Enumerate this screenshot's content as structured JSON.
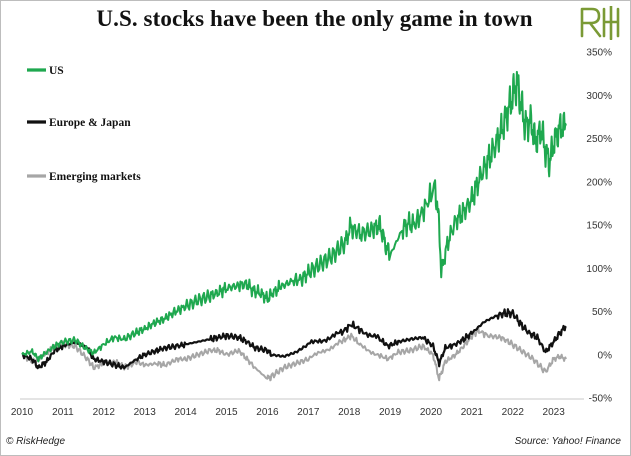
{
  "title": "U.S. stocks have been the only game in town",
  "logo_text": "RH",
  "footer": {
    "left": "© RiskHedge",
    "right": "Source: Yahoo! Finance"
  },
  "colors": {
    "us": "#1fa84f",
    "europe_japan": "#111111",
    "emerging": "#a6a6a6",
    "logo": "#7a9a35"
  },
  "chart_data": {
    "type": "line",
    "title": "U.S. stocks have been the only game in town",
    "xlabel": "",
    "ylabel": "",
    "xlim": [
      2010,
      2023.35
    ],
    "ylim": [
      -50,
      350
    ],
    "x_ticks": [
      "2010",
      "2011",
      "2012",
      "2013",
      "2014",
      "2015",
      "2016",
      "2017",
      "2018",
      "2019",
      "2020",
      "2021",
      "2022",
      "2023"
    ],
    "y_ticks": [
      "-50%",
      "0%",
      "50%",
      "100%",
      "150%",
      "200%",
      "250%",
      "300%",
      "350%"
    ],
    "y_axis_position": "right",
    "legend_position": "left",
    "grid": false,
    "series": [
      {
        "name": "US",
        "color": "#1fa84f",
        "x": [
          2010.0,
          2010.25,
          2010.4,
          2010.6,
          2010.8,
          2011.0,
          2011.3,
          2011.6,
          2011.75,
          2012.0,
          2012.25,
          2012.5,
          2012.8,
          2013.0,
          2013.25,
          2013.5,
          2013.75,
          2014.0,
          2014.3,
          2014.6,
          2014.8,
          2015.0,
          2015.3,
          2015.5,
          2015.65,
          2015.8,
          2016.0,
          2016.1,
          2016.3,
          2016.6,
          2016.85,
          2017.0,
          2017.3,
          2017.6,
          2017.9,
          2018.05,
          2018.1,
          2018.3,
          2018.6,
          2018.75,
          2018.9,
          2019.0,
          2019.3,
          2019.45,
          2019.6,
          2019.85,
          2020.1,
          2020.2,
          2020.25,
          2020.4,
          2020.6,
          2020.8,
          2021.0,
          2021.2,
          2021.4,
          2021.6,
          2021.75,
          2021.9,
          2022.0,
          2022.1,
          2022.2,
          2022.3,
          2022.45,
          2022.55,
          2022.7,
          2022.8,
          2022.9,
          2023.0,
          2023.15,
          2023.3
        ],
        "y": [
          0,
          4,
          -5,
          3,
          10,
          15,
          17,
          6,
          2,
          12,
          20,
          18,
          26,
          30,
          37,
          42,
          50,
          56,
          63,
          68,
          72,
          77,
          80,
          82,
          74,
          72,
          65,
          70,
          78,
          85,
          88,
          95,
          105,
          115,
          130,
          150,
          145,
          140,
          145,
          150,
          125,
          115,
          145,
          152,
          150,
          170,
          195,
          150,
          95,
          128,
          155,
          165,
          180,
          205,
          225,
          245,
          262,
          285,
          300,
          315,
          290,
          265,
          270,
          245,
          260,
          235,
          222,
          245,
          262,
          265
        ]
      },
      {
        "name": "Europe & Japan",
        "color": "#111111",
        "x": [
          2010.0,
          2010.25,
          2010.4,
          2010.6,
          2010.8,
          2011.0,
          2011.3,
          2011.6,
          2011.75,
          2012.0,
          2012.3,
          2012.5,
          2012.8,
          2013.0,
          2013.3,
          2013.5,
          2013.8,
          2014.0,
          2014.3,
          2014.6,
          2014.8,
          2015.0,
          2015.3,
          2015.5,
          2015.7,
          2016.0,
          2016.1,
          2016.4,
          2016.7,
          2017.0,
          2017.4,
          2017.8,
          2018.05,
          2018.3,
          2018.7,
          2018.95,
          2019.2,
          2019.5,
          2019.8,
          2020.05,
          2020.2,
          2020.35,
          2020.6,
          2020.8,
          2021.0,
          2021.3,
          2021.6,
          2021.8,
          2022.0,
          2022.2,
          2022.4,
          2022.6,
          2022.8,
          2023.0,
          2023.15,
          2023.3
        ],
        "y": [
          0,
          -5,
          -15,
          -8,
          5,
          10,
          15,
          8,
          -5,
          -8,
          -12,
          -15,
          -5,
          0,
          5,
          8,
          10,
          12,
          15,
          18,
          20,
          22,
          20,
          15,
          8,
          5,
          0,
          -2,
          3,
          12,
          18,
          25,
          35,
          28,
          20,
          10,
          15,
          18,
          20,
          10,
          -10,
          8,
          12,
          18,
          25,
          38,
          45,
          48,
          48,
          35,
          25,
          20,
          3,
          15,
          25,
          33
        ]
      },
      {
        "name": "Emerging markets",
        "color": "#a6a6a6",
        "x": [
          2010.0,
          2010.25,
          2010.4,
          2010.6,
          2010.8,
          2011.0,
          2011.3,
          2011.6,
          2011.75,
          2012.0,
          2012.3,
          2012.5,
          2012.8,
          2013.0,
          2013.3,
          2013.5,
          2013.8,
          2014.0,
          2014.3,
          2014.6,
          2014.8,
          2015.0,
          2015.3,
          2015.5,
          2015.7,
          2016.0,
          2016.1,
          2016.4,
          2016.7,
          2017.0,
          2017.4,
          2017.8,
          2018.05,
          2018.3,
          2018.7,
          2018.95,
          2019.2,
          2019.5,
          2019.8,
          2020.05,
          2020.2,
          2020.35,
          2020.6,
          2020.8,
          2021.0,
          2021.15,
          2021.4,
          2021.7,
          2021.9,
          2022.2,
          2022.5,
          2022.8,
          2023.0,
          2023.15,
          2023.3
        ],
        "y": [
          0,
          -8,
          -5,
          2,
          10,
          12,
          10,
          -5,
          -15,
          -10,
          -8,
          -15,
          -8,
          -12,
          -10,
          -12,
          -5,
          -5,
          0,
          5,
          5,
          0,
          5,
          -5,
          -15,
          -28,
          -25,
          -15,
          -10,
          -5,
          5,
          15,
          22,
          10,
          0,
          -5,
          3,
          5,
          10,
          0,
          -28,
          -8,
          0,
          10,
          22,
          28,
          22,
          20,
          15,
          5,
          -5,
          -20,
          -5,
          -2,
          -5
        ]
      }
    ]
  }
}
